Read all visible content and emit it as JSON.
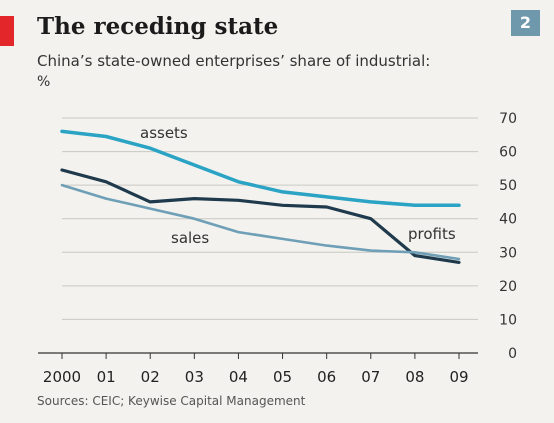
{
  "header": {
    "title": "The receding state",
    "badge": "2",
    "subtitle": "China’s state-owned enterprises’ share of industrial:",
    "unit": "%"
  },
  "source": "Sources: CEIC; Keywise Capital Management",
  "colors": {
    "assets": "#2aa3c4",
    "profits": "#1f3a4c",
    "sales": "#6e9fb6",
    "accent": "#e3262a",
    "badge": "#6f98ad"
  },
  "chart_data": {
    "type": "line",
    "x": [
      2000,
      2001,
      2002,
      2003,
      2004,
      2005,
      2006,
      2007,
      2008,
      2009
    ],
    "xtick_labels": [
      "2000",
      "01",
      "02",
      "03",
      "04",
      "05",
      "06",
      "07",
      "08",
      "09"
    ],
    "ylim": [
      0,
      70
    ],
    "yticks": [
      0,
      10,
      20,
      30,
      40,
      50,
      60,
      70
    ],
    "y_axis_side": "right",
    "series": [
      {
        "name": "assets",
        "values": [
          66,
          64.5,
          61,
          56,
          51,
          48,
          46.5,
          45,
          44,
          44
        ]
      },
      {
        "name": "profits",
        "values": [
          54.5,
          51,
          45,
          46,
          45.5,
          44,
          43.5,
          40,
          29,
          27
        ]
      },
      {
        "name": "sales",
        "values": [
          50,
          46,
          43,
          40,
          36,
          34,
          32,
          30.5,
          30,
          28
        ]
      }
    ]
  }
}
